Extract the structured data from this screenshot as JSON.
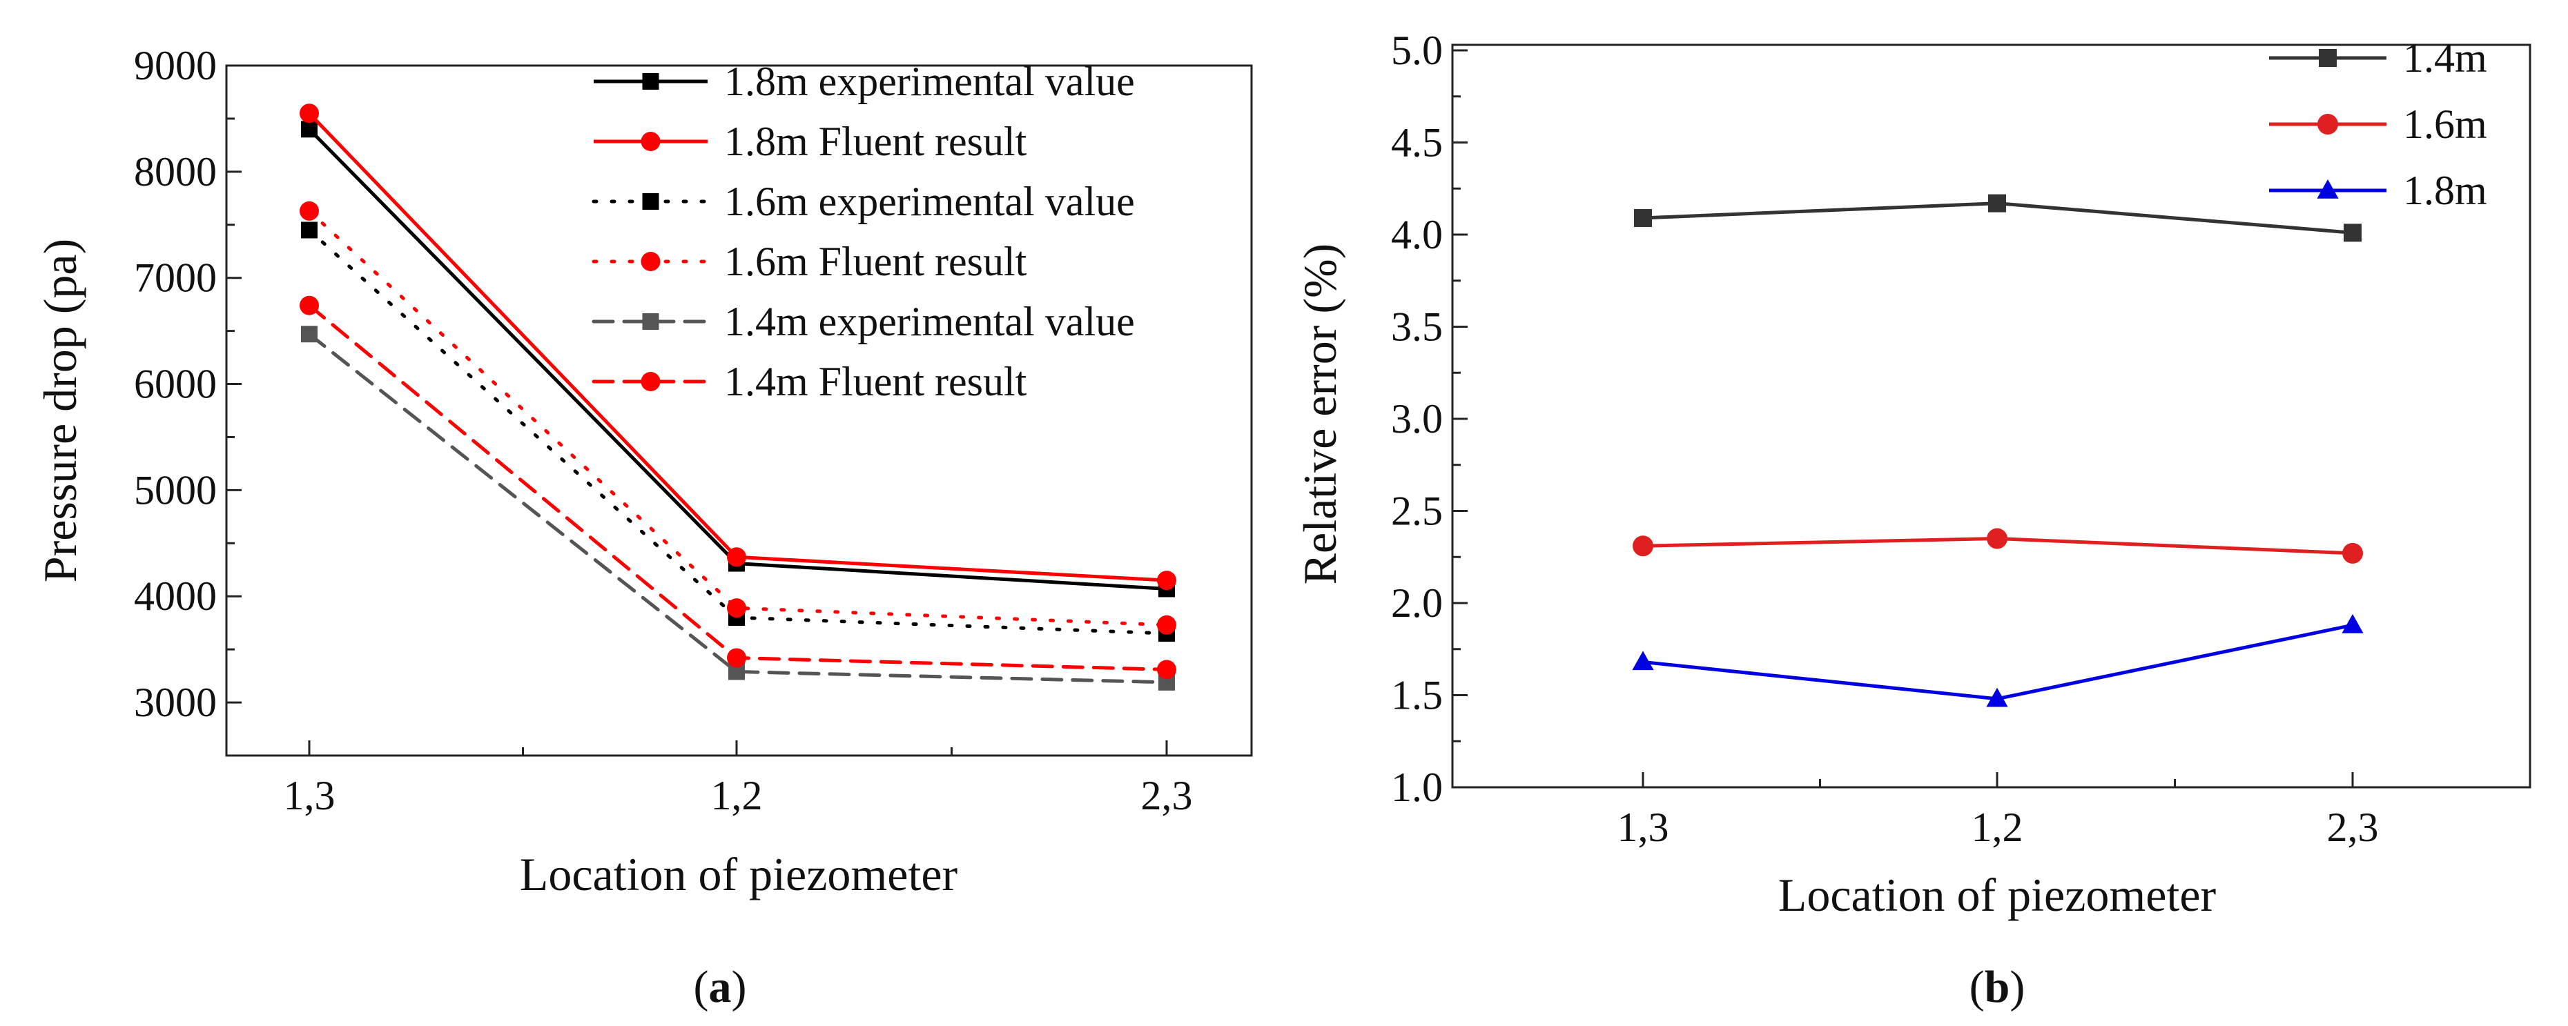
{
  "chart_data": [
    {
      "type": "line",
      "panel": "a",
      "title": "",
      "xlabel": "Location of piezometer",
      "ylabel": "Pressure drop (pa)",
      "categories": [
        "1,3",
        "1,2",
        "2,3"
      ],
      "ylim": [
        2500,
        9000
      ],
      "yticks": [
        3000,
        4000,
        5000,
        6000,
        7000,
        8000,
        9000
      ],
      "legend_position": "top-right",
      "series": [
        {
          "name": "1.8m experimental value",
          "values": [
            8400,
            4310,
            4070
          ],
          "color": "#000000",
          "dash": "solid",
          "marker": "square"
        },
        {
          "name": "1.8m Fluent result",
          "values": [
            8550,
            4370,
            4150
          ],
          "color": "#ff0000",
          "dash": "solid",
          "marker": "circle"
        },
        {
          "name": "1.6m experimental value",
          "values": [
            7450,
            3800,
            3650
          ],
          "color": "#000000",
          "dash": "dot",
          "marker": "square"
        },
        {
          "name": "1.6m Fluent result",
          "values": [
            7630,
            3890,
            3730
          ],
          "color": "#ff0000",
          "dash": "dot",
          "marker": "circle"
        },
        {
          "name": "1.4m experimental value",
          "values": [
            6470,
            3290,
            3190
          ],
          "color": "#555555",
          "dash": "dash",
          "marker": "square"
        },
        {
          "name": "1.4m Fluent result",
          "values": [
            6740,
            3420,
            3310
          ],
          "color": "#ff0000",
          "dash": "dash",
          "marker": "circle"
        }
      ],
      "caption": "a"
    },
    {
      "type": "line",
      "panel": "b",
      "title": "",
      "xlabel": "Location of piezometer",
      "ylabel": "Relative error (%)",
      "categories": [
        "1,3",
        "1,2",
        "2,3"
      ],
      "ylim": [
        1.0,
        5.0
      ],
      "yticks": [
        "1.0",
        "1.5",
        "2.0",
        "2.5",
        "3.0",
        "3.5",
        "4.0",
        "4.5",
        "5.0"
      ],
      "legend_position": "top-right",
      "series": [
        {
          "name": "1.4m",
          "values": [
            4.09,
            4.17,
            4.01
          ],
          "color": "#333333",
          "marker": "square"
        },
        {
          "name": "1.6m",
          "values": [
            2.31,
            2.35,
            2.27
          ],
          "color": "#e02020",
          "marker": "circle"
        },
        {
          "name": "1.8m",
          "values": [
            1.68,
            1.48,
            1.88
          ],
          "color": "#0000e0",
          "marker": "triangle"
        }
      ],
      "caption": "b"
    }
  ]
}
